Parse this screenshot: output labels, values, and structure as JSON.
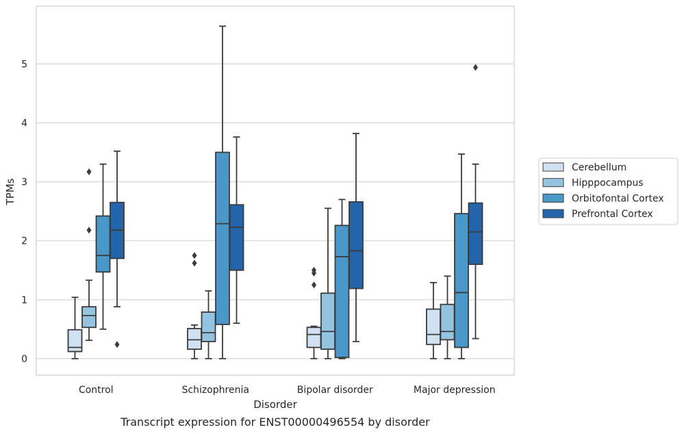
{
  "chart_data": {
    "type": "box",
    "caption": "Transcript expression for ENST00000496554 by disorder",
    "xlabel": "Disorder",
    "ylabel": "TPMs",
    "ylim": [
      -0.28,
      5.98
    ],
    "yticks": [
      0,
      1,
      2,
      3,
      4,
      5
    ],
    "ytick_labels": [
      "0",
      "1",
      "2",
      "3",
      "4",
      "5"
    ],
    "grid": "horizontal",
    "legend": {
      "placement": "right",
      "entries": [
        "Cerebellum",
        "Hipppocampus",
        "Orbitofontal Cortex",
        "Prefrontal Cortex"
      ]
    },
    "colors": [
      "#d0e1f2",
      "#94c4df",
      "#4a98c9",
      "#2464ab"
    ],
    "edge_color": "#3b3b3b",
    "categories": [
      "Control",
      "Schizophrenia",
      "Bipolar disorder",
      "Major depression"
    ],
    "series": [
      {
        "name": "Cerebellum",
        "boxes": [
          {
            "whislo": 0.0,
            "q1": 0.12,
            "med": 0.19,
            "q3": 0.49,
            "whishi": 1.04,
            "fliers": []
          },
          {
            "whislo": 0.0,
            "q1": 0.16,
            "med": 0.32,
            "q3": 0.51,
            "whishi": 0.57,
            "fliers": [
              1.62,
              1.75
            ]
          },
          {
            "whislo": 0.0,
            "q1": 0.19,
            "med": 0.41,
            "q3": 0.53,
            "whishi": 0.55,
            "fliers": [
              1.25,
              1.45,
              1.5
            ]
          },
          {
            "whislo": 0.0,
            "q1": 0.24,
            "med": 0.41,
            "q3": 0.84,
            "whishi": 1.29,
            "fliers": []
          }
        ]
      },
      {
        "name": "Hipppocampus",
        "boxes": [
          {
            "whislo": 0.31,
            "q1": 0.53,
            "med": 0.73,
            "q3": 0.88,
            "whishi": 1.33,
            "fliers": [
              2.18,
              3.17
            ]
          },
          {
            "whislo": 0.0,
            "q1": 0.29,
            "med": 0.44,
            "q3": 0.79,
            "whishi": 1.15,
            "fliers": []
          },
          {
            "whislo": 0.0,
            "q1": 0.16,
            "med": 0.46,
            "q3": 1.11,
            "whishi": 2.55,
            "fliers": []
          },
          {
            "whislo": 0.0,
            "q1": 0.32,
            "med": 0.46,
            "q3": 0.92,
            "whishi": 1.4,
            "fliers": []
          }
        ]
      },
      {
        "name": "Orbitofontal Cortex",
        "boxes": [
          {
            "whislo": 0.5,
            "q1": 1.47,
            "med": 1.75,
            "q3": 2.42,
            "whishi": 3.3,
            "fliers": []
          },
          {
            "whislo": 0.0,
            "q1": 0.58,
            "med": 2.29,
            "q3": 3.5,
            "whishi": 5.64,
            "fliers": []
          },
          {
            "whislo": 0.0,
            "q1": 0.02,
            "med": 1.73,
            "q3": 2.26,
            "whishi": 2.7,
            "fliers": []
          },
          {
            "whislo": 0.0,
            "q1": 0.19,
            "med": 1.12,
            "q3": 2.46,
            "whishi": 3.47,
            "fliers": []
          }
        ]
      },
      {
        "name": "Prefrontal Cortex",
        "boxes": [
          {
            "whislo": 0.88,
            "q1": 1.7,
            "med": 2.18,
            "q3": 2.65,
            "whishi": 3.52,
            "fliers": [
              0.24
            ]
          },
          {
            "whislo": 0.6,
            "q1": 1.5,
            "med": 2.23,
            "q3": 2.61,
            "whishi": 3.76,
            "fliers": []
          },
          {
            "whislo": 0.29,
            "q1": 1.19,
            "med": 1.83,
            "q3": 2.66,
            "whishi": 3.82,
            "fliers": []
          },
          {
            "whislo": 0.34,
            "q1": 1.6,
            "med": 2.15,
            "q3": 2.64,
            "whishi": 3.3,
            "fliers": [
              4.94
            ]
          }
        ]
      }
    ]
  }
}
